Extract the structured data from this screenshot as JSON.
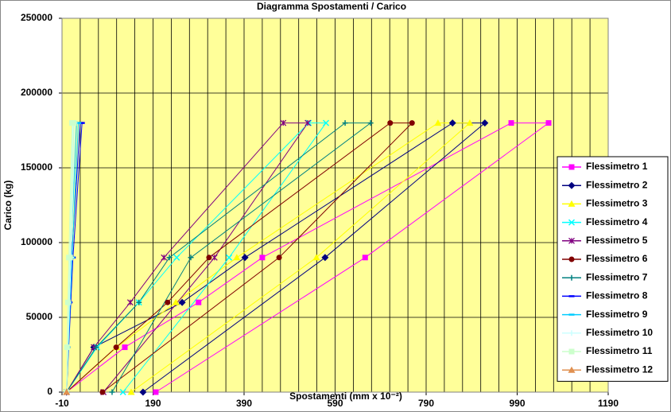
{
  "chart_data": {
    "type": "scatter-line",
    "title": "Diagramma Spostamenti / Carico",
    "xlabel": "Spostamenti (mm x 10⁻²)",
    "ylabel": "Carico (kg)",
    "xlim": [
      -10,
      1190
    ],
    "xticks": [
      -10,
      190,
      390,
      590,
      790,
      990,
      1190
    ],
    "ylim": [
      0,
      250000
    ],
    "yticks": [
      0,
      50000,
      100000,
      150000,
      200000,
      250000
    ],
    "grid": true,
    "x_minor_grid": 5,
    "legend": "right",
    "series": [
      {
        "name": "Flessimetro 1",
        "color": "#ff00ff",
        "marker": "square",
        "x": [
          0,
          128,
          290,
          430,
          977,
          1059,
          656,
          196
        ],
        "values": [
          0,
          30000,
          60000,
          90000,
          180000,
          180000,
          90000,
          0
        ]
      },
      {
        "name": "Flessimetro 2",
        "color": "#000080",
        "marker": "diamond",
        "x": [
          0,
          60,
          254,
          392,
          848,
          919,
          568,
          168
        ],
        "values": [
          0,
          30000,
          60000,
          90000,
          180000,
          180000,
          90000,
          0
        ]
      },
      {
        "name": "Flessimetro 3",
        "color": "#ffff00",
        "marker": "triangle",
        "x": [
          0,
          110,
          240,
          374,
          816,
          886,
          549,
          142
        ],
        "values": [
          0,
          30000,
          60000,
          90000,
          180000,
          180000,
          90000,
          0
        ]
      },
      {
        "name": "Flessimetro 4",
        "color": "#00ffff",
        "marker": "x",
        "x": [
          0,
          67,
          159,
          242,
          532,
          570,
          357,
          124
        ],
        "values": [
          0,
          30000,
          60000,
          90000,
          180000,
          180000,
          90000,
          0
        ]
      },
      {
        "name": "Flessimetro 5",
        "color": "#800080",
        "marker": "star",
        "x": [
          0,
          60,
          140,
          214,
          476,
          530,
          325,
          81
        ],
        "values": [
          0,
          30000,
          60000,
          90000,
          180000,
          180000,
          90000,
          0
        ]
      },
      {
        "name": "Flessimetro 6",
        "color": "#800000",
        "marker": "circle",
        "x": [
          0,
          109,
          222,
          313,
          711,
          759,
          467,
          79
        ],
        "values": [
          0,
          30000,
          60000,
          90000,
          180000,
          180000,
          90000,
          0
        ]
      },
      {
        "name": "Flessimetro 7",
        "color": "#008080",
        "marker": "plus",
        "x": [
          0,
          65,
          159,
          226,
          612,
          668,
          273,
          100
        ],
        "values": [
          0,
          30000,
          60000,
          90000,
          180000,
          180000,
          90000,
          0
        ]
      },
      {
        "name": "Flessimetro 8",
        "color": "#0000ff",
        "marker": "dash",
        "x": [
          0,
          2,
          7,
          11,
          30,
          34,
          14,
          0
        ],
        "values": [
          0,
          30000,
          60000,
          90000,
          180000,
          180000,
          90000,
          0
        ]
      },
      {
        "name": "Flessimetro 9",
        "color": "#00ccff",
        "marker": "dash",
        "x": [
          0,
          2,
          5,
          9,
          22,
          26,
          12,
          0
        ],
        "values": [
          0,
          30000,
          60000,
          90000,
          180000,
          180000,
          90000,
          0
        ]
      },
      {
        "name": "Flessimetro 10",
        "color": "#ccffff",
        "marker": "plus",
        "x": [
          0,
          1,
          4,
          7,
          14,
          18,
          10,
          0
        ],
        "values": [
          0,
          30000,
          60000,
          90000,
          180000,
          180000,
          90000,
          0
        ]
      },
      {
        "name": "Flessimetro 11",
        "color": "#ccffcc",
        "marker": "square",
        "x": [
          0,
          1,
          3,
          5,
          12,
          16,
          8,
          0
        ],
        "values": [
          0,
          30000,
          60000,
          90000,
          180000,
          180000,
          90000,
          0
        ]
      },
      {
        "name": "Flessimetro 12",
        "color": "#e09050",
        "marker": "triangle",
        "x": [
          0
        ],
        "values": [
          0
        ]
      }
    ]
  }
}
